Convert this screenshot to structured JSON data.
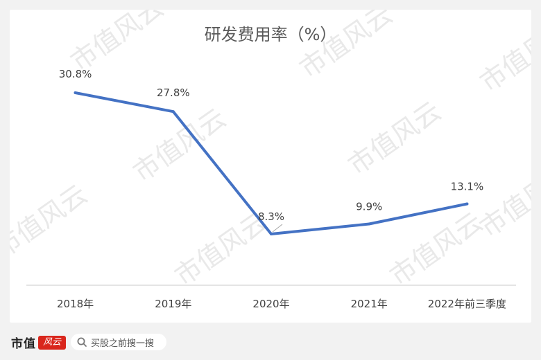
{
  "chart_data": {
    "type": "line",
    "title": "研发费用率（%）",
    "categories": [
      "2018年",
      "2019年",
      "2020年",
      "2021年",
      "2022年前三季度"
    ],
    "series": [
      {
        "values": [
          30.8,
          27.8,
          8.3,
          9.9,
          13.1
        ]
      }
    ],
    "data_labels": [
      "30.8%",
      "27.8%",
      "8.3%",
      "9.9%",
      "13.1%"
    ],
    "ylim": [
      0,
      35
    ],
    "grid": false,
    "legend": "none",
    "colors": {
      "line": "#4472c4",
      "axis": "#c8c8c8",
      "text": "#404040",
      "title": "#595959"
    }
  },
  "watermark": "市值风云",
  "footer": {
    "brand": "市值",
    "brand_seal": "风云",
    "search_text": "买股之前搜一搜"
  }
}
